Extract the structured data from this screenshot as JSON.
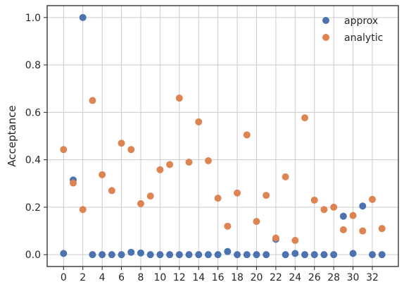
{
  "chart_data": {
    "type": "scatter",
    "title": "",
    "xlabel": "",
    "ylabel": "Acceptance",
    "xlim": [
      -1.7,
      34.7
    ],
    "ylim": [
      -0.05,
      1.05
    ],
    "xticks": [
      0,
      2,
      4,
      6,
      8,
      10,
      12,
      14,
      16,
      18,
      20,
      22,
      24,
      26,
      28,
      30,
      32
    ],
    "yticks": [
      0.0,
      0.2,
      0.4,
      0.6,
      0.8,
      1.0
    ],
    "ytick_labels": [
      "0.0",
      "0.2",
      "0.4",
      "0.6",
      "0.8",
      "1.0"
    ],
    "grid": true,
    "legend_position": "top-right",
    "x": [
      0,
      1,
      2,
      3,
      4,
      5,
      6,
      7,
      8,
      9,
      10,
      11,
      12,
      13,
      14,
      15,
      16,
      17,
      18,
      19,
      20,
      21,
      22,
      23,
      24,
      25,
      26,
      27,
      28,
      29,
      30,
      31,
      32,
      33
    ],
    "series": [
      {
        "name": "approx",
        "color": "#4c72b0",
        "values": [
          0.005,
          0.315,
          1.0,
          0.0,
          0.0,
          0.0,
          0.0,
          0.01,
          0.007,
          0.0,
          0.0,
          0.0,
          0.0,
          0.0,
          0.0,
          0.0,
          0.0,
          0.013,
          0.0,
          0.0,
          0.0,
          0.0,
          0.065,
          0.0,
          0.005,
          0.0,
          0.0,
          0.0,
          0.0,
          0.162,
          0.005,
          0.205,
          0.0,
          0.0
        ]
      },
      {
        "name": "analytic",
        "color": "#dd8452",
        "values": [
          0.443,
          0.302,
          0.19,
          0.65,
          0.337,
          0.27,
          0.47,
          0.443,
          0.215,
          0.247,
          0.358,
          0.38,
          0.66,
          0.39,
          0.56,
          0.396,
          0.238,
          0.12,
          0.26,
          0.505,
          0.14,
          0.25,
          0.07,
          0.328,
          0.06,
          0.577,
          0.23,
          0.19,
          0.2,
          0.105,
          0.165,
          0.1,
          0.233,
          0.11
        ]
      }
    ]
  }
}
